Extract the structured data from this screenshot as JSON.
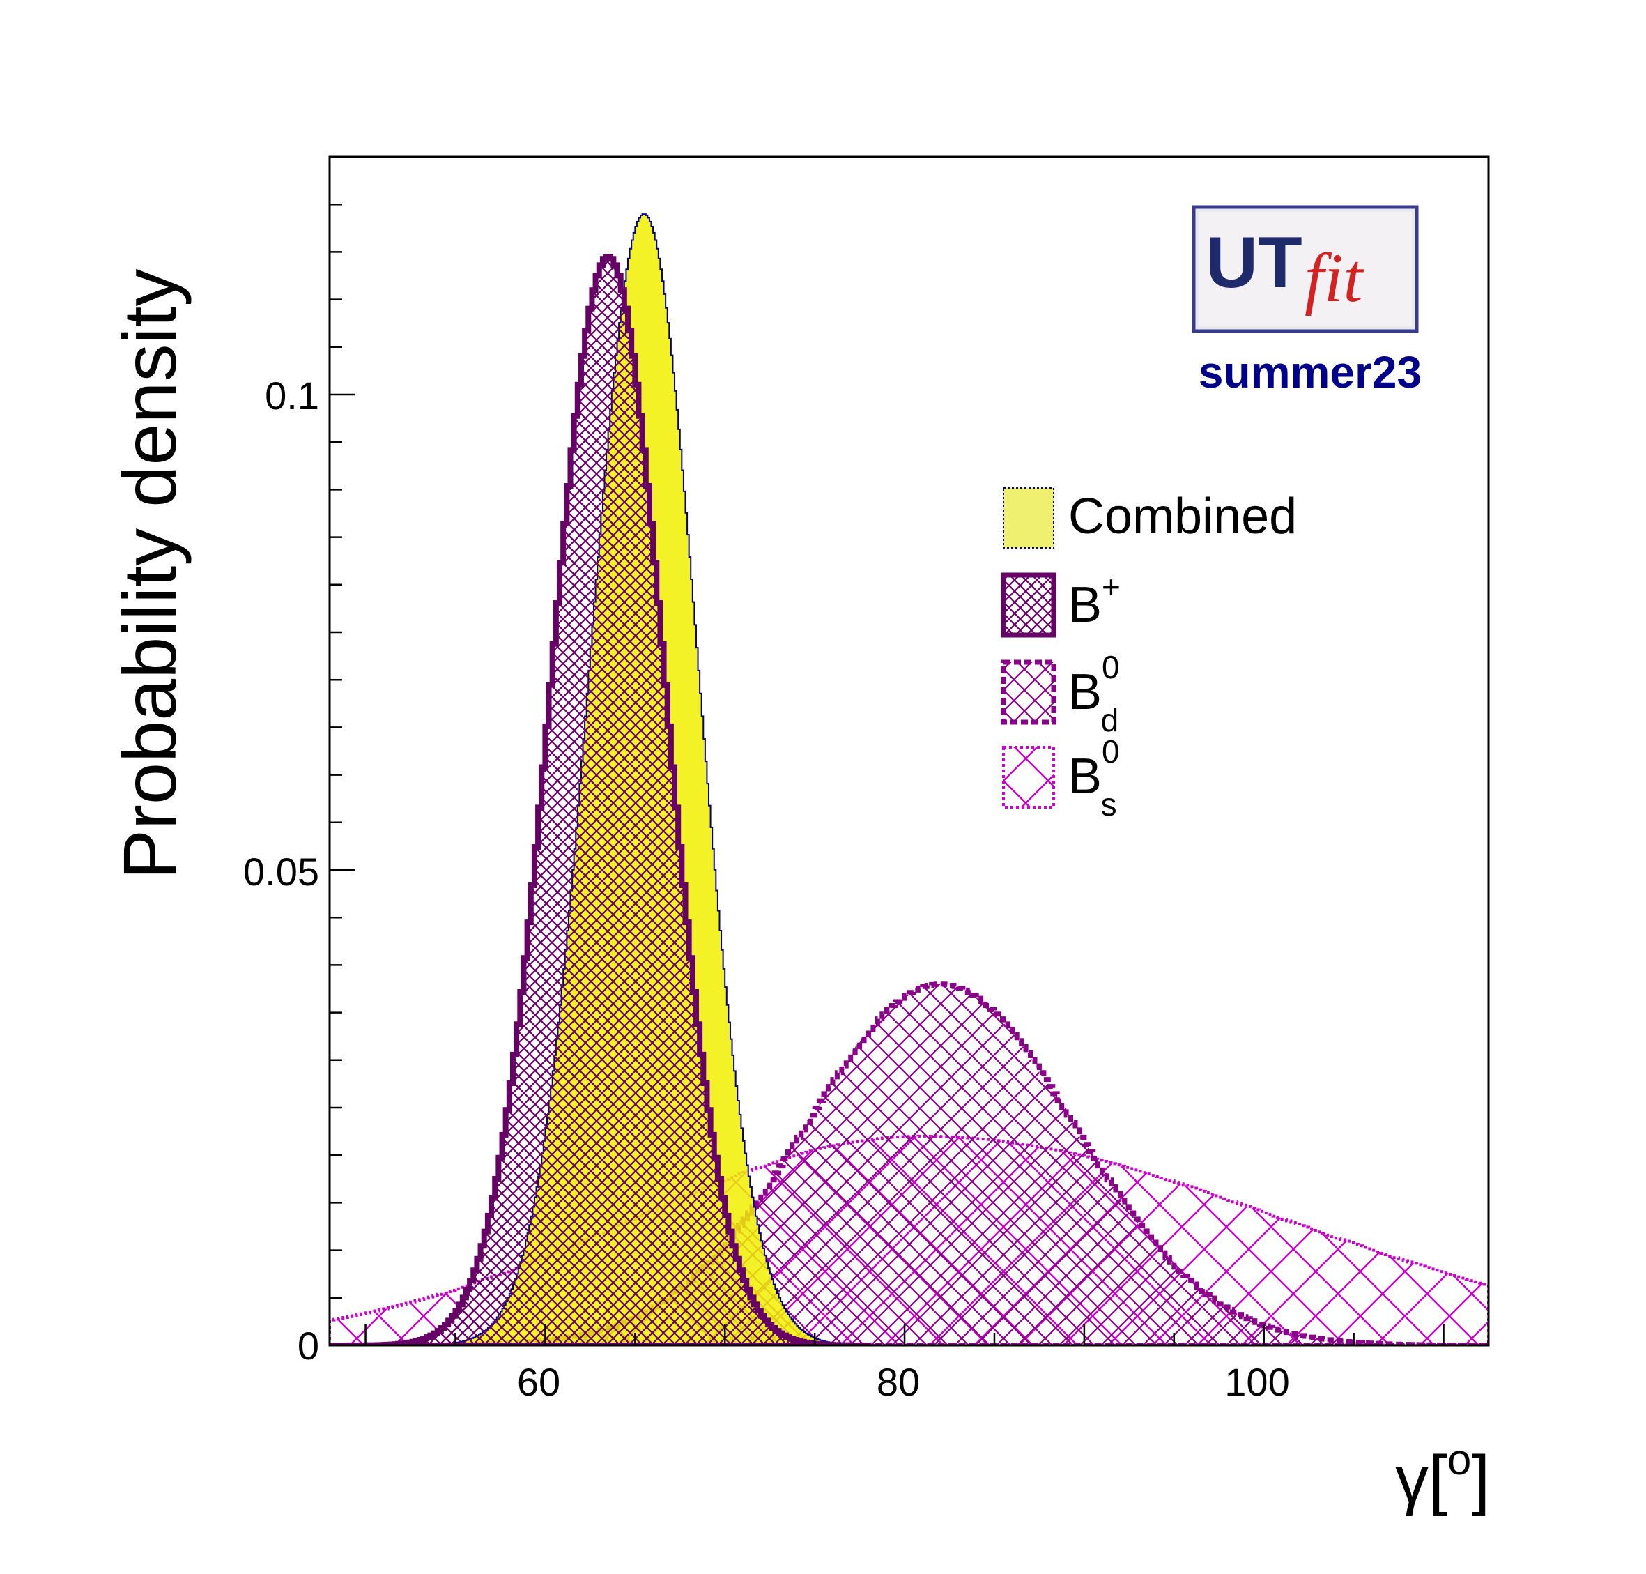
{
  "chart_data": {
    "type": "area",
    "xlabel": "γ[°]",
    "ylabel": "Probability density",
    "xlim": [
      48,
      112.5
    ],
    "ylim": [
      0,
      0.125
    ],
    "x_ticks": [
      "60",
      "80",
      "100"
    ],
    "y_ticks": [
      "0",
      "0.05",
      "0.1"
    ],
    "x_tick_values": [
      60,
      80,
      100
    ],
    "y_tick_values": [
      0,
      0.05,
      0.1
    ],
    "grid": false,
    "legend_position": "top-right",
    "series": [
      {
        "name": "Combined",
        "style": "filled-yellow",
        "color": "#f0f000",
        "edge_color": "#00008b",
        "peak_x": 65.5,
        "peak_y": 0.119,
        "sigma_left": 3.0,
        "sigma_right": 3.0,
        "x_from": 48,
        "x_to": 78
      },
      {
        "name": "B+",
        "style": "cross-hatch-dark",
        "color": "#660066",
        "peak_x": 63.5,
        "peak_y": 0.1145,
        "sigma_left": 3.2,
        "sigma_right": 3.2,
        "x_from": 48,
        "x_to": 78
      },
      {
        "name": "Bd0",
        "style": "cross-hatch-dashed",
        "color": "#8b008b",
        "peak_x": 82,
        "peak_y": 0.038,
        "sigma_left": 7.5,
        "sigma_right": 7.5,
        "x_from": 48,
        "x_to": 112.5
      },
      {
        "name": "Bs0",
        "style": "cross-hatch-dotted",
        "color": "#cc00cc",
        "peak_x": 81,
        "peak_y": 0.022,
        "sigma_left": 16,
        "sigma_right": 20,
        "x_from": 48,
        "x_to": 112.5
      }
    ]
  },
  "legend": {
    "combined": "Combined",
    "bplus_base": "B",
    "bplus_sup": "+",
    "bd_base": "B",
    "bd_sup": "0",
    "bd_sub": "d",
    "bs_base": "B",
    "bs_sup": "0",
    "bs_sub": "s"
  },
  "logo": {
    "ut": "UT",
    "fit": "fit",
    "caption": "summer23",
    "caption_color": "#00008b"
  },
  "axes": {
    "xlabel_base": "γ[",
    "xlabel_sup": "o",
    "xlabel_end": "]"
  }
}
